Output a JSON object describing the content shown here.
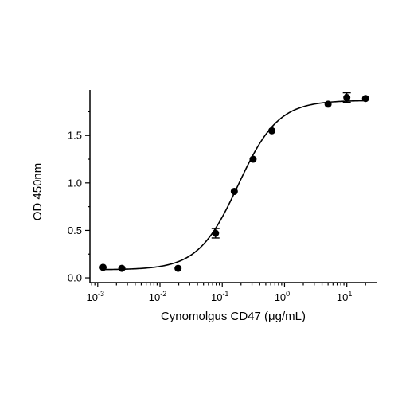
{
  "chart_data": {
    "type": "scatter",
    "xlabel": "Cynomolgus CD47 (μg/mL)",
    "ylabel": "OD 450nm",
    "x_scale": "log",
    "xlim": [
      0.00075,
      30
    ],
    "ylim": [
      -0.05,
      1.98
    ],
    "x_ticks": [
      {
        "base": "10",
        "exp": "-3",
        "value": 0.001
      },
      {
        "base": "10",
        "exp": "-2",
        "value": 0.01
      },
      {
        "base": "10",
        "exp": "-1",
        "value": 0.1
      },
      {
        "base": "10",
        "exp": "0",
        "value": 1
      },
      {
        "base": "10",
        "exp": "1",
        "value": 10
      }
    ],
    "y_ticks": [
      {
        "label": "0.0",
        "value": 0.0
      },
      {
        "label": "0.5",
        "value": 0.5
      },
      {
        "label": "1.0",
        "value": 1.0
      },
      {
        "label": "1.5",
        "value": 1.5
      }
    ],
    "series": [
      {
        "points": [
          {
            "x": 0.00122,
            "y": 0.11,
            "err": 0.0
          },
          {
            "x": 0.00244,
            "y": 0.1,
            "err": 0.0
          },
          {
            "x": 0.0195,
            "y": 0.1,
            "err": 0.0
          },
          {
            "x": 0.078,
            "y": 0.47,
            "err": 0.05
          },
          {
            "x": 0.156,
            "y": 0.91,
            "err": 0.0
          },
          {
            "x": 0.3125,
            "y": 1.25,
            "err": 0.0
          },
          {
            "x": 0.625,
            "y": 1.55,
            "err": 0.0
          },
          {
            "x": 5.0,
            "y": 1.83,
            "err": 0.0
          },
          {
            "x": 10.0,
            "y": 1.9,
            "err": 0.05
          },
          {
            "x": 20.0,
            "y": 1.89,
            "err": 0.0
          }
        ]
      }
    ],
    "fit_curve": {
      "model": "4PL",
      "bottom": 0.085,
      "top": 1.87,
      "ec50": 0.18,
      "hill": 1.35
    },
    "grid": false,
    "legend": "none"
  }
}
